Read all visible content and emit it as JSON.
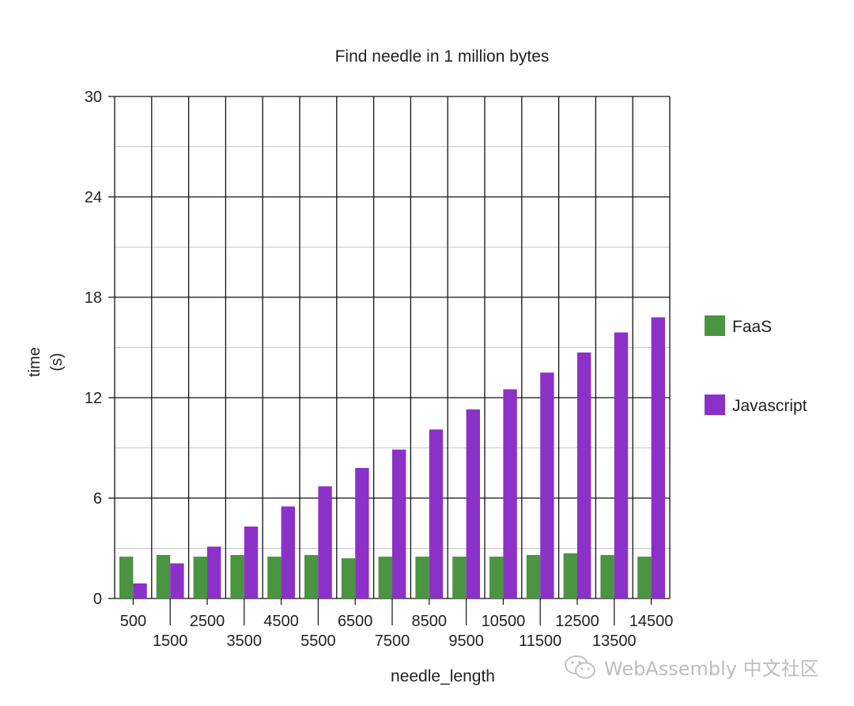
{
  "chart_data": {
    "type": "bar",
    "title": "Find needle in 1 million bytes",
    "xlabel": "needle_length",
    "ylabel_line1": "time",
    "ylabel_line2": "(s)",
    "ylim": [
      0,
      30
    ],
    "yticks": [
      0,
      6,
      12,
      18,
      24,
      30
    ],
    "grid": true,
    "legend_position": "right",
    "categories": [
      "500",
      "1500",
      "2500",
      "3500",
      "4500",
      "5500",
      "6500",
      "7500",
      "8500",
      "9500",
      "10500",
      "11500",
      "12500",
      "13500",
      "14500"
    ],
    "series": [
      {
        "name": "FaaS",
        "color": "#4b9441",
        "values": [
          2.5,
          2.6,
          2.5,
          2.6,
          2.5,
          2.6,
          2.4,
          2.5,
          2.5,
          2.5,
          2.5,
          2.6,
          2.7,
          2.6,
          2.5
        ]
      },
      {
        "name": "Javascript",
        "color": "#8c31c8",
        "values": [
          0.9,
          2.1,
          3.1,
          4.3,
          5.5,
          6.7,
          7.8,
          8.9,
          10.1,
          11.3,
          12.5,
          13.5,
          14.7,
          15.9,
          16.8
        ]
      }
    ]
  },
  "watermark": {
    "text": "WebAssembly 中文社区",
    "icon": "wechat-icon"
  }
}
